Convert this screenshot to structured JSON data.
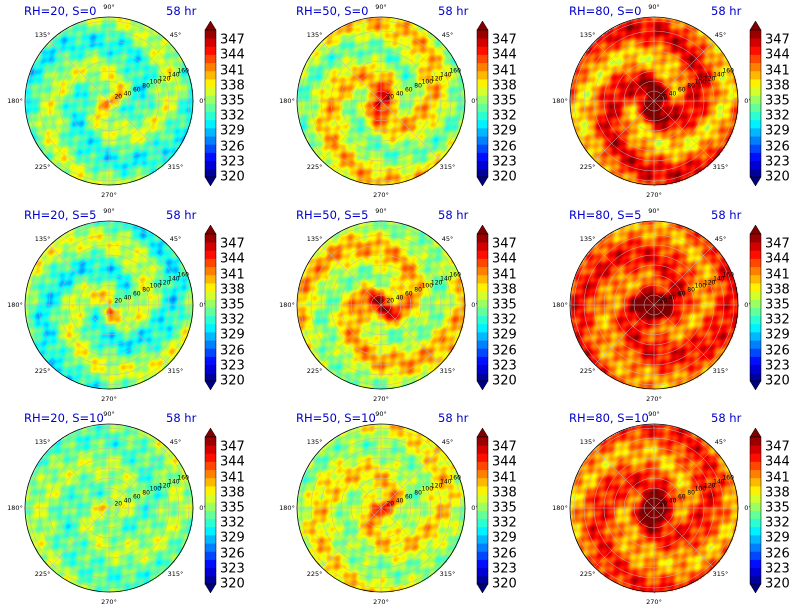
{
  "colors": {
    "title_blue": "#0000cc",
    "colormap": [
      "#00007f",
      "#0000ff",
      "#007fff",
      "#00ffff",
      "#7fff7f",
      "#ffff00",
      "#ff7f00",
      "#ff0000",
      "#7f0000"
    ]
  },
  "chart_data": [
    {
      "type": "heatmap",
      "projection": "polar",
      "title": "RH=20, S=0",
      "time_label": "58 hr",
      "mean_value": 334,
      "hot_core": 0.45,
      "spiral_strength": 0.7,
      "angle_ticks": [
        "0°",
        "45°",
        "90°",
        "135°",
        "180°",
        "225°",
        "270°",
        "315°"
      ],
      "radial_ticks": [
        "20",
        "40",
        "60",
        "80",
        "100",
        "120",
        "140",
        "160"
      ],
      "colorbar_ticks": [
        "320",
        "323",
        "326",
        "329",
        "332",
        "335",
        "338",
        "341",
        "344",
        "347"
      ],
      "clim": [
        320,
        349
      ]
    },
    {
      "type": "heatmap",
      "projection": "polar",
      "title": "RH=50, S=0",
      "time_label": "58 hr",
      "mean_value": 337,
      "hot_core": 0.75,
      "spiral_strength": 0.8,
      "angle_ticks": [
        "0°",
        "45°",
        "90°",
        "135°",
        "180°",
        "225°",
        "270°",
        "315°"
      ],
      "radial_ticks": [
        "20",
        "40",
        "60",
        "80",
        "100",
        "120",
        "140",
        "160"
      ],
      "colorbar_ticks": [
        "320",
        "323",
        "326",
        "329",
        "332",
        "335",
        "338",
        "341",
        "344",
        "347"
      ],
      "clim": [
        320,
        349
      ]
    },
    {
      "type": "heatmap",
      "projection": "polar",
      "title": "RH=80, S=0",
      "time_label": "58 hr",
      "mean_value": 342.5,
      "hot_core": 1.0,
      "spiral_strength": 0.9,
      "angle_ticks": [
        "0°",
        "45°",
        "90°",
        "135°",
        "180°",
        "225°",
        "270°",
        "315°"
      ],
      "radial_ticks": [
        "20",
        "40",
        "60",
        "80",
        "100",
        "120",
        "140",
        "160"
      ],
      "colorbar_ticks": [
        "320",
        "323",
        "326",
        "329",
        "332",
        "335",
        "338",
        "341",
        "344",
        "347"
      ],
      "clim": [
        320,
        349
      ]
    },
    {
      "type": "heatmap",
      "projection": "polar",
      "title": "RH=20, S=5",
      "time_label": "58 hr",
      "mean_value": 334,
      "hot_core": 0.4,
      "spiral_strength": 0.8,
      "angle_ticks": [
        "0°",
        "45°",
        "90°",
        "135°",
        "180°",
        "225°",
        "270°",
        "315°"
      ],
      "radial_ticks": [
        "20",
        "40",
        "60",
        "80",
        "100",
        "120",
        "140",
        "160"
      ],
      "colorbar_ticks": [
        "320",
        "323",
        "326",
        "329",
        "332",
        "335",
        "338",
        "341",
        "344",
        "347"
      ],
      "clim": [
        320,
        349
      ]
    },
    {
      "type": "heatmap",
      "projection": "polar",
      "title": "RH=50, S=5",
      "time_label": "58 hr",
      "mean_value": 337.5,
      "hot_core": 0.8,
      "spiral_strength": 0.8,
      "angle_ticks": [
        "0°",
        "45°",
        "90°",
        "135°",
        "180°",
        "225°",
        "270°",
        "315°"
      ],
      "radial_ticks": [
        "20",
        "40",
        "60",
        "80",
        "100",
        "120",
        "140",
        "160"
      ],
      "colorbar_ticks": [
        "320",
        "323",
        "326",
        "329",
        "332",
        "335",
        "338",
        "341",
        "344",
        "347"
      ],
      "clim": [
        320,
        349
      ]
    },
    {
      "type": "heatmap",
      "projection": "polar",
      "title": "RH=80, S=5",
      "time_label": "58 hr",
      "mean_value": 343,
      "hot_core": 1.0,
      "spiral_strength": 0.6,
      "angle_ticks": [
        "0°",
        "45°",
        "90°",
        "135°",
        "180°",
        "225°",
        "270°",
        "315°"
      ],
      "radial_ticks": [
        "20",
        "40",
        "60",
        "80",
        "100",
        "120",
        "140",
        "160"
      ],
      "colorbar_ticks": [
        "320",
        "323",
        "326",
        "329",
        "332",
        "335",
        "338",
        "341",
        "344",
        "347"
      ],
      "clim": [
        320,
        349
      ]
    },
    {
      "type": "heatmap",
      "projection": "polar",
      "title": "RH=20, S=10",
      "time_label": "58 hr",
      "mean_value": 334.5,
      "hot_core": 0.2,
      "spiral_strength": 0.4,
      "angle_ticks": [
        "0°",
        "45°",
        "90°",
        "135°",
        "180°",
        "225°",
        "270°",
        "315°"
      ],
      "radial_ticks": [
        "20",
        "40",
        "60",
        "80",
        "100",
        "120",
        "140",
        "160"
      ],
      "colorbar_ticks": [
        "320",
        "323",
        "326",
        "329",
        "332",
        "335",
        "338",
        "341",
        "344",
        "347"
      ],
      "clim": [
        320,
        349
      ]
    },
    {
      "type": "heatmap",
      "projection": "polar",
      "title": "RH=50, S=10",
      "time_label": "58 hr",
      "mean_value": 337,
      "hot_core": 0.5,
      "spiral_strength": 0.6,
      "angle_ticks": [
        "0°",
        "45°",
        "90°",
        "135°",
        "180°",
        "225°",
        "270°",
        "315°"
      ],
      "radial_ticks": [
        "20",
        "40",
        "60",
        "80",
        "100",
        "120",
        "140",
        "160"
      ],
      "colorbar_ticks": [
        "320",
        "323",
        "326",
        "329",
        "332",
        "335",
        "338",
        "341",
        "344",
        "347"
      ],
      "clim": [
        320,
        349
      ]
    },
    {
      "type": "heatmap",
      "projection": "polar",
      "title": "RH=80, S=10",
      "time_label": "58 hr",
      "mean_value": 342.5,
      "hot_core": 1.0,
      "spiral_strength": 0.6,
      "angle_ticks": [
        "0°",
        "45°",
        "90°",
        "135°",
        "180°",
        "225°",
        "270°",
        "315°"
      ],
      "radial_ticks": [
        "20",
        "40",
        "60",
        "80",
        "100",
        "120",
        "140",
        "160"
      ],
      "colorbar_ticks": [
        "320",
        "323",
        "326",
        "329",
        "332",
        "335",
        "338",
        "341",
        "344",
        "347"
      ],
      "clim": [
        320,
        349
      ]
    }
  ]
}
